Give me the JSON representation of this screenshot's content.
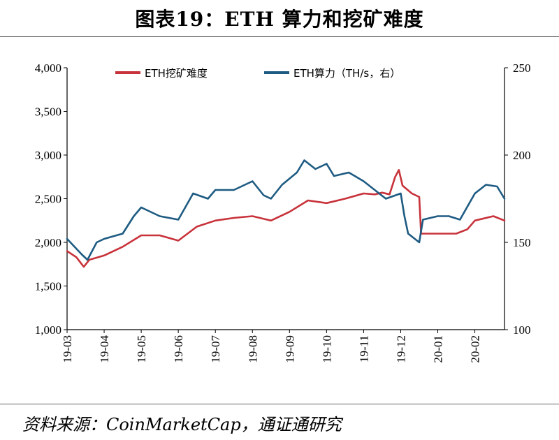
{
  "title": "图表19：ETH 算力和挖矿难度",
  "source": "资料来源：CoinMarketCap，通证通研究",
  "chart_data": {
    "type": "line",
    "x": [
      "19-03",
      "19-04",
      "19-05",
      "19-06",
      "19-07",
      "19-08",
      "19-09",
      "19-10",
      "19-11",
      "19-12",
      "20-01",
      "20-02"
    ],
    "y_left": {
      "ticks": [
        "1,000",
        "1,500",
        "2,000",
        "2,500",
        "3,000",
        "3,500",
        "4,000"
      ],
      "ylim": [
        1000,
        4000
      ]
    },
    "y_right": {
      "ticks": [
        "100",
        "150",
        "200",
        "250"
      ],
      "ylim": [
        100,
        250
      ]
    },
    "legend_position": "top",
    "series": [
      {
        "name": "ETH挖矿难度",
        "axis": "left",
        "color": "#c8323a",
        "points": [
          [
            0.0,
            1900
          ],
          [
            0.25,
            1830
          ],
          [
            0.45,
            1720
          ],
          [
            0.6,
            1800
          ],
          [
            1.0,
            1850
          ],
          [
            1.5,
            1950
          ],
          [
            2.0,
            2080
          ],
          [
            2.5,
            2080
          ],
          [
            3.0,
            2020
          ],
          [
            3.5,
            2180
          ],
          [
            4.0,
            2250
          ],
          [
            4.5,
            2280
          ],
          [
            5.0,
            2300
          ],
          [
            5.5,
            2250
          ],
          [
            6.0,
            2350
          ],
          [
            6.5,
            2480
          ],
          [
            7.0,
            2450
          ],
          [
            7.5,
            2500
          ],
          [
            8.0,
            2560
          ],
          [
            8.3,
            2550
          ],
          [
            8.5,
            2570
          ],
          [
            8.7,
            2550
          ],
          [
            8.85,
            2750
          ],
          [
            8.95,
            2830
          ],
          [
            9.05,
            2650
          ],
          [
            9.3,
            2560
          ],
          [
            9.5,
            2520
          ],
          [
            9.55,
            2100
          ],
          [
            10.0,
            2100
          ],
          [
            10.5,
            2100
          ],
          [
            10.8,
            2150
          ],
          [
            11.0,
            2250
          ],
          [
            11.5,
            2300
          ],
          [
            11.8,
            2250
          ]
        ]
      },
      {
        "name": "ETH算力（TH/s，右）",
        "axis": "right",
        "color": "#1e5b82",
        "points": [
          [
            0.0,
            152
          ],
          [
            0.4,
            143
          ],
          [
            0.55,
            140
          ],
          [
            0.8,
            150
          ],
          [
            1.0,
            152
          ],
          [
            1.5,
            155
          ],
          [
            1.8,
            165
          ],
          [
            2.0,
            170
          ],
          [
            2.5,
            165
          ],
          [
            3.0,
            163
          ],
          [
            3.4,
            178
          ],
          [
            3.8,
            175
          ],
          [
            4.0,
            180
          ],
          [
            4.5,
            180
          ],
          [
            5.0,
            185
          ],
          [
            5.3,
            177
          ],
          [
            5.5,
            175
          ],
          [
            5.8,
            183
          ],
          [
            6.2,
            190
          ],
          [
            6.4,
            197
          ],
          [
            6.7,
            192
          ],
          [
            7.0,
            195
          ],
          [
            7.2,
            188
          ],
          [
            7.6,
            190
          ],
          [
            8.0,
            185
          ],
          [
            8.3,
            180
          ],
          [
            8.6,
            175
          ],
          [
            9.0,
            178
          ],
          [
            9.1,
            165
          ],
          [
            9.2,
            155
          ],
          [
            9.5,
            150
          ],
          [
            9.6,
            163
          ],
          [
            10.0,
            165
          ],
          [
            10.3,
            165
          ],
          [
            10.6,
            163
          ],
          [
            11.0,
            178
          ],
          [
            11.3,
            183
          ],
          [
            11.6,
            182
          ],
          [
            11.8,
            175
          ]
        ]
      }
    ]
  }
}
